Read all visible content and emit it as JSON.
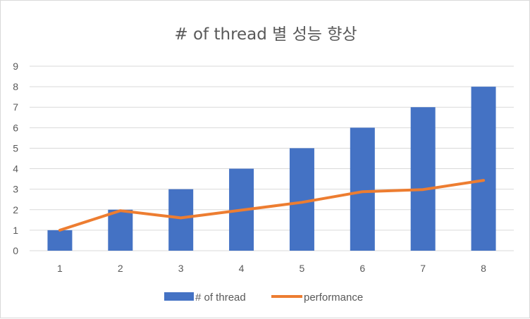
{
  "chart_data": {
    "type": "bar",
    "title": "# of thread 별 성능 향상",
    "categories": [
      "1",
      "2",
      "3",
      "4",
      "5",
      "6",
      "7",
      "8"
    ],
    "series": [
      {
        "name": "# of thread",
        "type": "bar",
        "color": "#4472c4",
        "values": [
          1,
          2,
          3,
          4,
          5,
          6,
          7,
          8
        ]
      },
      {
        "name": "performance",
        "type": "line",
        "color": "#ed7d31",
        "values": [
          1.0,
          1.95,
          1.6,
          1.98,
          2.36,
          2.88,
          2.98,
          3.43
        ]
      }
    ],
    "ylim": [
      0,
      9
    ],
    "yticks": [
      "0",
      "1",
      "2",
      "3",
      "4",
      "5",
      "6",
      "7",
      "8",
      "9"
    ],
    "grid": true,
    "legend": "bottom"
  }
}
